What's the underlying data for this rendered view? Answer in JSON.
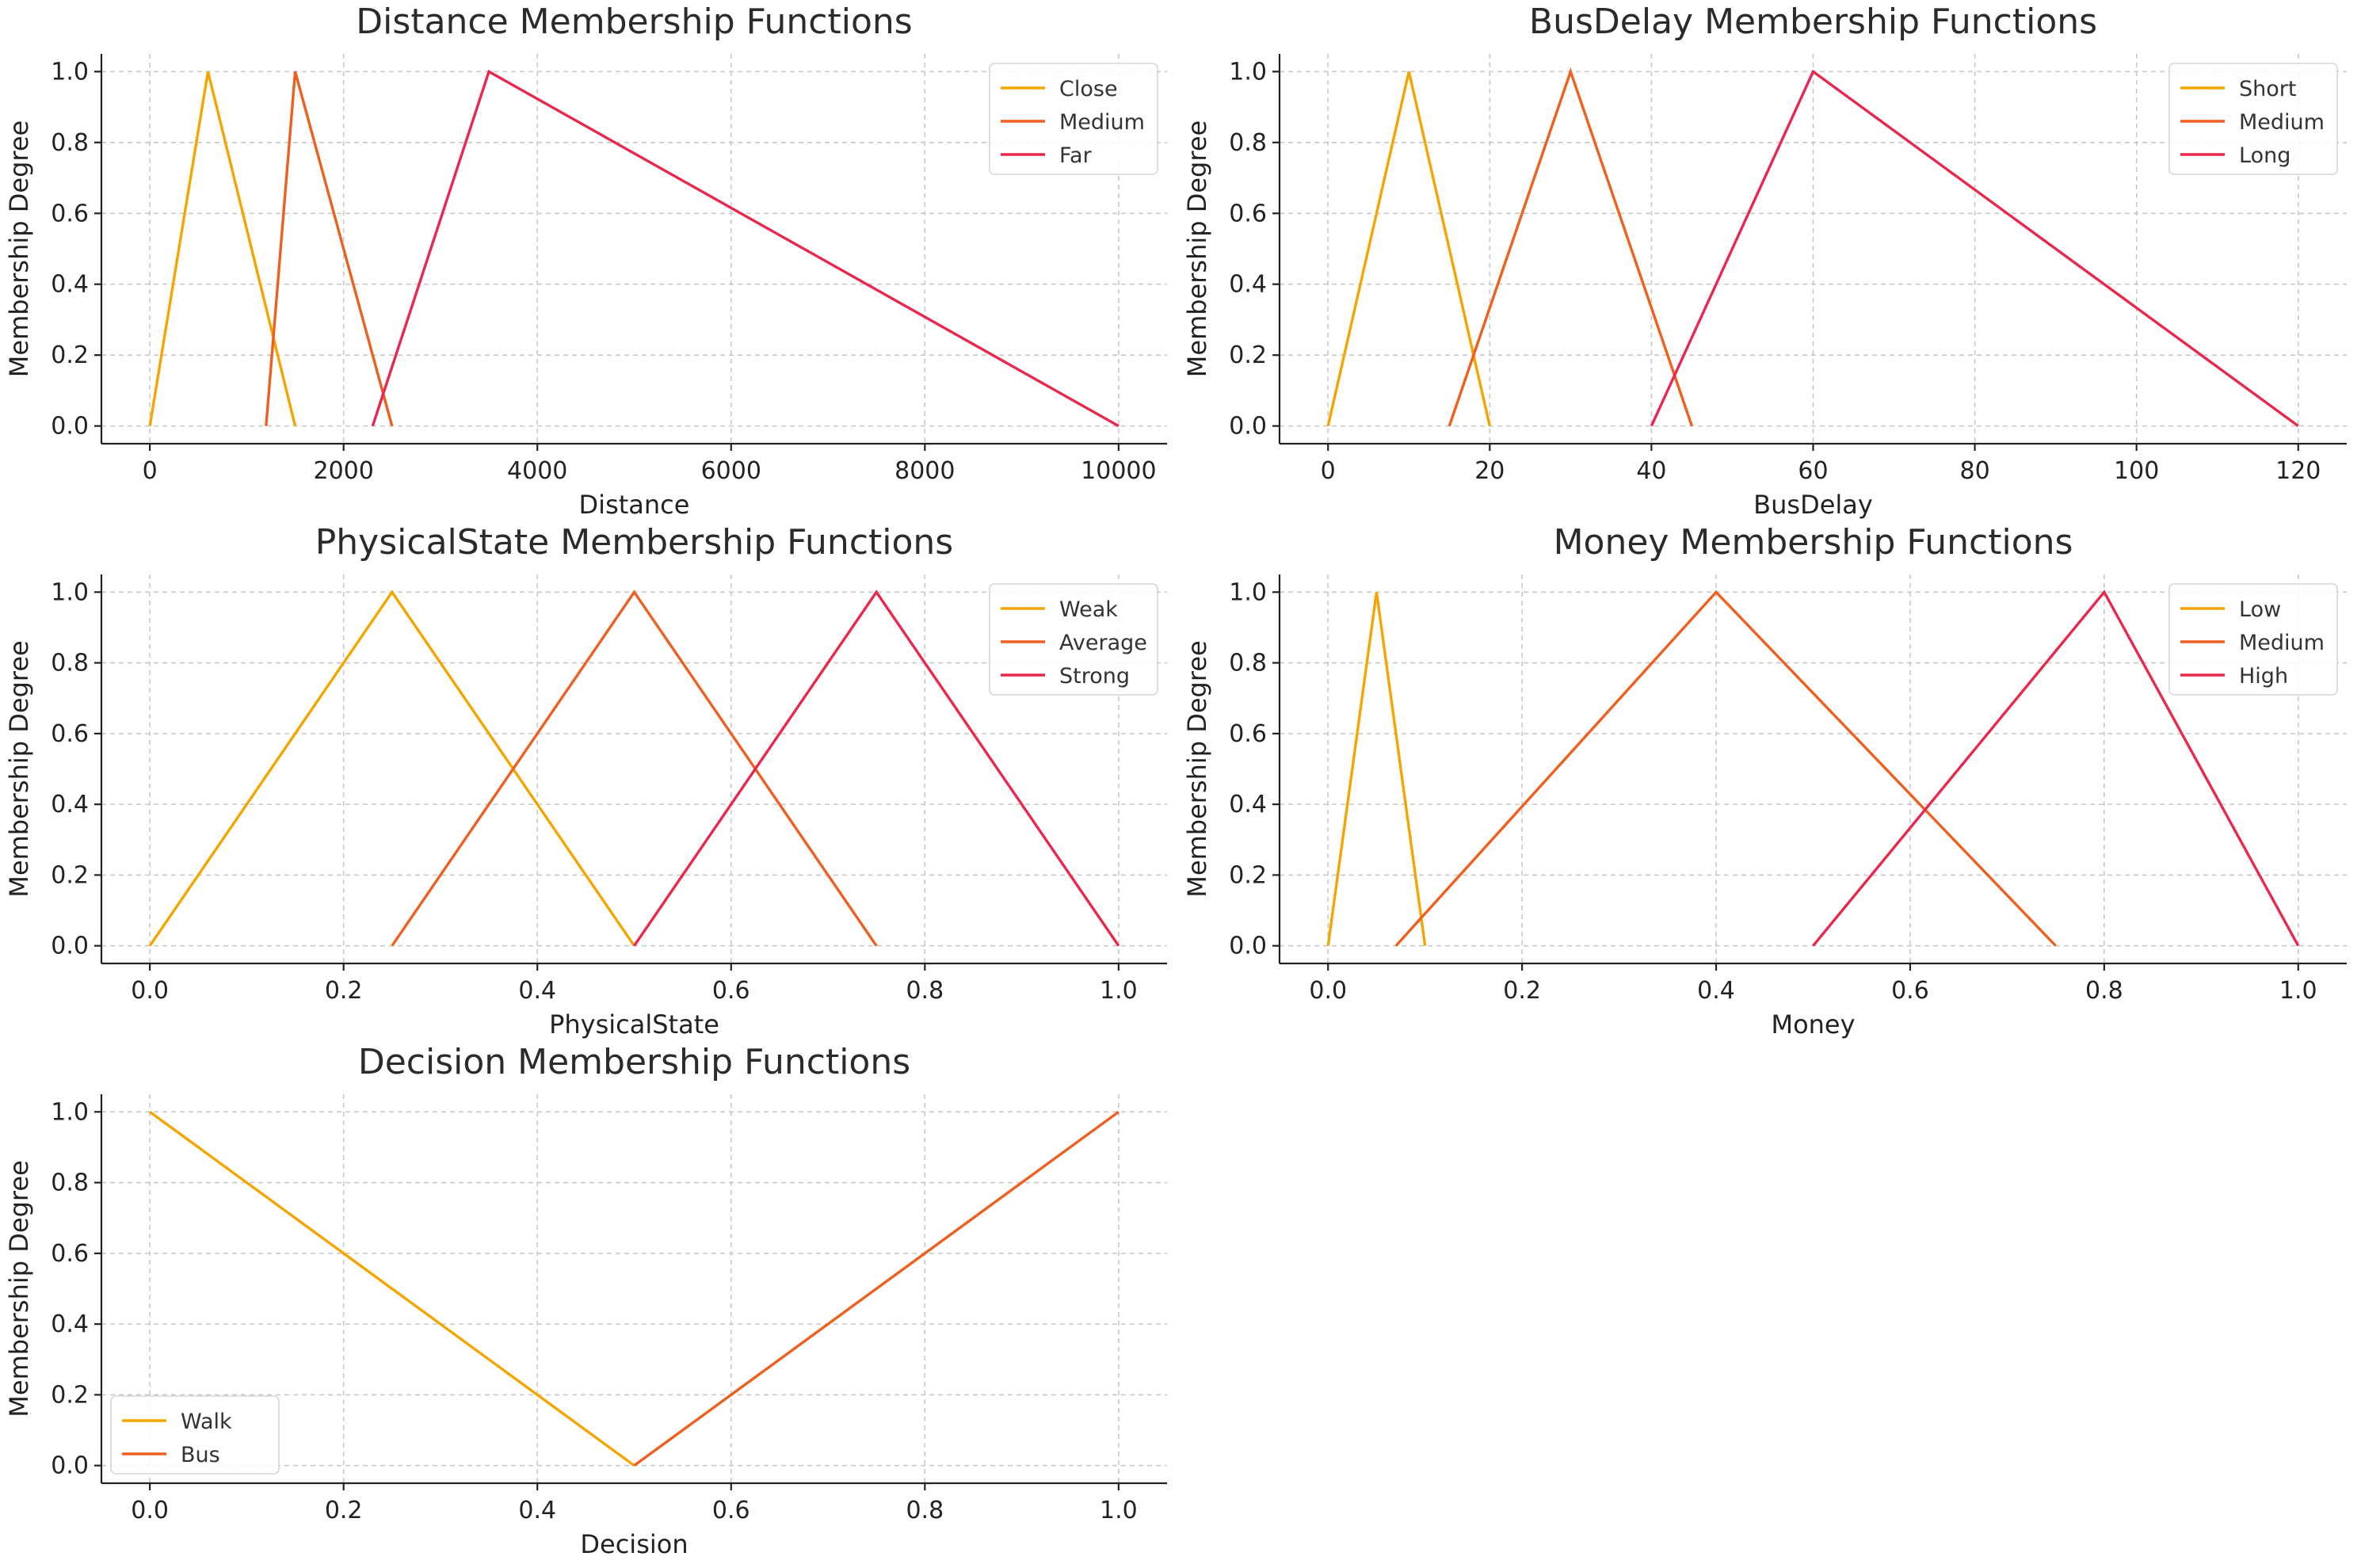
{
  "colors": {
    "series_1": "#f5a500",
    "series_2": "#ee6020",
    "series_3": "#e8294d",
    "text": "#222222",
    "grid": "#c8c8c8"
  },
  "chart_data": [
    {
      "type": "line",
      "title": "Distance Membership Functions",
      "xlabel": "Distance",
      "ylabel": "Membership Degree",
      "xlim": [
        -500,
        10500
      ],
      "ylim": [
        -0.05,
        1.05
      ],
      "xticks": [
        0,
        2000,
        4000,
        6000,
        8000,
        10000
      ],
      "yticks": [
        0.0,
        0.2,
        0.4,
        0.6,
        0.8,
        1.0
      ],
      "xtick_labels": [
        "0",
        "2000",
        "4000",
        "6000",
        "8000",
        "10000"
      ],
      "ytick_labels": [
        "0.0",
        "0.2",
        "0.4",
        "0.6",
        "0.8",
        "1.0"
      ],
      "grid": true,
      "legend_position": "top-right",
      "series": [
        {
          "name": "Close",
          "x": [
            0,
            600,
            1500
          ],
          "y": [
            0,
            1,
            0
          ]
        },
        {
          "name": "Medium",
          "x": [
            1200,
            1500,
            2500
          ],
          "y": [
            0,
            1,
            0
          ]
        },
        {
          "name": "Far",
          "x": [
            2300,
            3500,
            10000
          ],
          "y": [
            0,
            1,
            0
          ]
        }
      ]
    },
    {
      "type": "line",
      "title": "BusDelay Membership Functions",
      "xlabel": "BusDelay",
      "ylabel": "Membership Degree",
      "xlim": [
        -6,
        126
      ],
      "ylim": [
        -0.05,
        1.05
      ],
      "xticks": [
        0,
        20,
        40,
        60,
        80,
        100,
        120
      ],
      "yticks": [
        0.0,
        0.2,
        0.4,
        0.6,
        0.8,
        1.0
      ],
      "xtick_labels": [
        "0",
        "20",
        "40",
        "60",
        "80",
        "100",
        "120"
      ],
      "ytick_labels": [
        "0.0",
        "0.2",
        "0.4",
        "0.6",
        "0.8",
        "1.0"
      ],
      "grid": true,
      "legend_position": "top-right",
      "series": [
        {
          "name": "Short",
          "x": [
            0,
            10,
            20
          ],
          "y": [
            0,
            1,
            0
          ]
        },
        {
          "name": "Medium",
          "x": [
            15,
            30,
            45
          ],
          "y": [
            0,
            1,
            0
          ]
        },
        {
          "name": "Long",
          "x": [
            40,
            60,
            120
          ],
          "y": [
            0,
            1,
            0
          ]
        }
      ]
    },
    {
      "type": "line",
      "title": "PhysicalState Membership Functions",
      "xlabel": "PhysicalState",
      "ylabel": "Membership Degree",
      "xlim": [
        -0.05,
        1.05
      ],
      "ylim": [
        -0.05,
        1.05
      ],
      "xticks": [
        0.0,
        0.2,
        0.4,
        0.6,
        0.8,
        1.0
      ],
      "yticks": [
        0.0,
        0.2,
        0.4,
        0.6,
        0.8,
        1.0
      ],
      "xtick_labels": [
        "0.0",
        "0.2",
        "0.4",
        "0.6",
        "0.8",
        "1.0"
      ],
      "ytick_labels": [
        "0.0",
        "0.2",
        "0.4",
        "0.6",
        "0.8",
        "1.0"
      ],
      "grid": true,
      "legend_position": "top-right",
      "series": [
        {
          "name": "Weak",
          "x": [
            0.0,
            0.25,
            0.5
          ],
          "y": [
            0,
            1,
            0
          ]
        },
        {
          "name": "Average",
          "x": [
            0.25,
            0.5,
            0.75
          ],
          "y": [
            0,
            1,
            0
          ]
        },
        {
          "name": "Strong",
          "x": [
            0.5,
            0.75,
            1.0
          ],
          "y": [
            0,
            1,
            0
          ]
        }
      ]
    },
    {
      "type": "line",
      "title": "Money Membership Functions",
      "xlabel": "Money",
      "ylabel": "Membership Degree",
      "xlim": [
        -0.05,
        1.05
      ],
      "ylim": [
        -0.05,
        1.05
      ],
      "xticks": [
        0.0,
        0.2,
        0.4,
        0.6,
        0.8,
        1.0
      ],
      "yticks": [
        0.0,
        0.2,
        0.4,
        0.6,
        0.8,
        1.0
      ],
      "xtick_labels": [
        "0.0",
        "0.2",
        "0.4",
        "0.6",
        "0.8",
        "1.0"
      ],
      "ytick_labels": [
        "0.0",
        "0.2",
        "0.4",
        "0.6",
        "0.8",
        "1.0"
      ],
      "grid": true,
      "legend_position": "top-right",
      "series": [
        {
          "name": "Low",
          "x": [
            0.0,
            0.05,
            0.1
          ],
          "y": [
            0,
            1,
            0
          ]
        },
        {
          "name": "Medium",
          "x": [
            0.07,
            0.4,
            0.75
          ],
          "y": [
            0,
            1,
            0
          ]
        },
        {
          "name": "High",
          "x": [
            0.5,
            0.8,
            1.0
          ],
          "y": [
            0,
            1,
            0
          ]
        }
      ]
    },
    {
      "type": "line",
      "title": "Decision Membership Functions",
      "xlabel": "Decision",
      "ylabel": "Membership Degree",
      "xlim": [
        -0.05,
        1.05
      ],
      "ylim": [
        -0.05,
        1.05
      ],
      "xticks": [
        0.0,
        0.2,
        0.4,
        0.6,
        0.8,
        1.0
      ],
      "yticks": [
        0.0,
        0.2,
        0.4,
        0.6,
        0.8,
        1.0
      ],
      "xtick_labels": [
        "0.0",
        "0.2",
        "0.4",
        "0.6",
        "0.8",
        "1.0"
      ],
      "ytick_labels": [
        "0.0",
        "0.2",
        "0.4",
        "0.6",
        "0.8",
        "1.0"
      ],
      "grid": true,
      "legend_position": "bottom-left",
      "series": [
        {
          "name": "Walk",
          "x": [
            0.0,
            0.5
          ],
          "y": [
            1,
            0
          ]
        },
        {
          "name": "Bus",
          "x": [
            0.5,
            1.0
          ],
          "y": [
            0,
            1
          ]
        }
      ]
    }
  ]
}
